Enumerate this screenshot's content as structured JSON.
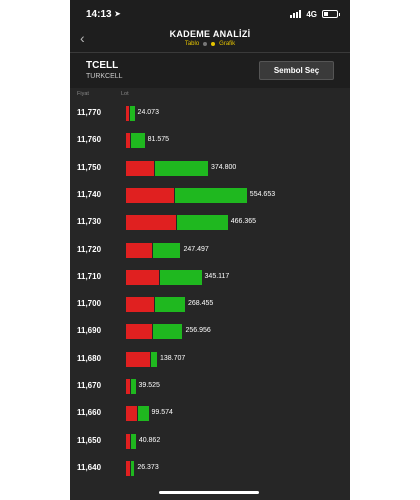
{
  "status_bar": {
    "time": "14:13",
    "network": "4G"
  },
  "nav": {
    "title": "KADEME ANALİZİ",
    "tab_table": "Tablo",
    "tab_chart": "Grafik"
  },
  "symbol": {
    "code": "TCELL",
    "name": "TURKCELL",
    "select_label": "Sembol Seç"
  },
  "columns": {
    "price": "Fiyat",
    "lot": "Lot"
  },
  "colors": {
    "sell": "#e02020",
    "buy": "#1fb81f",
    "background": "#262626"
  },
  "levels": [
    {
      "price": "11,770",
      "lot": "24.073",
      "sell_lot": 3000,
      "buy_lot": 21073
    },
    {
      "price": "11,760",
      "lot": "81.575",
      "sell_lot": 20000,
      "buy_lot": 61575
    },
    {
      "price": "11,750",
      "lot": "374.800",
      "sell_lot": 130000,
      "buy_lot": 244800
    },
    {
      "price": "11,740",
      "lot": "554.653",
      "sell_lot": 220000,
      "buy_lot": 334653
    },
    {
      "price": "11,730",
      "lot": "466.365",
      "sell_lot": 230000,
      "buy_lot": 236365
    },
    {
      "price": "11,720",
      "lot": "247.497",
      "sell_lot": 120000,
      "buy_lot": 127497
    },
    {
      "price": "11,710",
      "lot": "345.117",
      "sell_lot": 155000,
      "buy_lot": 190117
    },
    {
      "price": "11,700",
      "lot": "268.455",
      "sell_lot": 130000,
      "buy_lot": 138455
    },
    {
      "price": "11,690",
      "lot": "256.956",
      "sell_lot": 120000,
      "buy_lot": 136956
    },
    {
      "price": "11,680",
      "lot": "138.707",
      "sell_lot": 110000,
      "buy_lot": 28707
    },
    {
      "price": "11,670",
      "lot": "39.525",
      "sell_lot": 20000,
      "buy_lot": 19525
    },
    {
      "price": "11,660",
      "lot": "99.574",
      "sell_lot": 50000,
      "buy_lot": 49574
    },
    {
      "price": "11,650",
      "lot": "40.862",
      "sell_lot": 20000,
      "buy_lot": 20862
    },
    {
      "price": "11,640",
      "lot": "26.373",
      "sell_lot": 20000,
      "buy_lot": 6373
    }
  ]
}
